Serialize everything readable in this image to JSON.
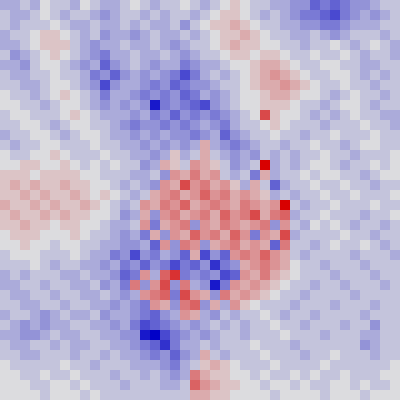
{
  "chart_data": {
    "type": "heatmap",
    "tick_labels": false,
    "zlim": [
      -9,
      9
    ],
    "cells": [
      [
        -2,
        -2,
        -1,
        -2,
        0,
        -1,
        -1,
        -2,
        0,
        -1,
        -2,
        -2,
        -1,
        0,
        -1,
        -2,
        -1,
        -1,
        0,
        -1,
        -2,
        -1,
        0,
        1,
        0,
        -1,
        -1,
        -2,
        -2,
        -3,
        -3,
        -5,
        -4,
        -5,
        -4,
        -3,
        -3,
        -2,
        -1,
        -1
      ],
      [
        -1,
        -2,
        -2,
        -1,
        0,
        -1,
        -2,
        -1,
        -1,
        -2,
        -3,
        -2,
        -1,
        -1,
        -2,
        -1,
        -2,
        -1,
        -1,
        -2,
        -1,
        0,
        1,
        1,
        0,
        -1,
        -2,
        -1,
        -2,
        -3,
        -4,
        -4,
        -5,
        -6,
        -4,
        -3,
        -2,
        -3,
        -2,
        -1
      ],
      [
        -1,
        -2,
        -1,
        -1,
        -1,
        0,
        -1,
        -2,
        -2,
        -1,
        -2,
        -2,
        -1,
        -2,
        -1,
        -2,
        -2,
        -1,
        -3,
        -1,
        0,
        1,
        1,
        2,
        1,
        0,
        -1,
        -1,
        -2,
        -2,
        -3,
        -3,
        -4,
        -4,
        -3,
        -2,
        -2,
        -2,
        -1,
        -1
      ],
      [
        -2,
        -1,
        -1,
        0,
        1,
        1,
        0,
        -1,
        -2,
        -1,
        -3,
        -2,
        -2,
        -3,
        -2,
        -1,
        -2,
        -2,
        -1,
        -2,
        -1,
        0,
        1,
        1,
        2,
        1,
        0,
        -1,
        -1,
        -2,
        -2,
        -1,
        -2,
        -3,
        -2,
        -1,
        -1,
        -1,
        -2,
        -1
      ],
      [
        -2,
        -2,
        -1,
        0,
        1,
        1,
        1,
        -1,
        -2,
        -3,
        -2,
        -2,
        -1,
        -2,
        -2,
        -1,
        -2,
        -3,
        -2,
        -1,
        -1,
        0,
        1,
        2,
        1,
        1,
        0,
        0,
        -1,
        -1,
        -2,
        -1,
        -1,
        0,
        -1,
        -2,
        -1,
        0,
        -1,
        -2
      ],
      [
        -1,
        -3,
        -2,
        -1,
        0,
        1,
        0,
        -1,
        -2,
        -3,
        -4,
        -2,
        -2,
        -1,
        -2,
        -2,
        -1,
        -2,
        -3,
        -2,
        -1,
        -1,
        0,
        1,
        1,
        0,
        1,
        1,
        0,
        -1,
        -1,
        0,
        -1,
        -1,
        0,
        -1,
        -2,
        -1,
        -1,
        -2
      ],
      [
        -2,
        -2,
        -3,
        -1,
        0,
        0,
        -1,
        -2,
        -3,
        -2,
        -5,
        -3,
        -2,
        -1,
        -2,
        -3,
        -2,
        -2,
        -4,
        -3,
        -2,
        -2,
        -1,
        0,
        0,
        1,
        2,
        2,
        1,
        0,
        -1,
        -1,
        0,
        0,
        -1,
        -1,
        -2,
        -2,
        -1,
        -1
      ],
      [
        -1,
        -2,
        -2,
        -1,
        -1,
        0,
        -1,
        -1,
        -2,
        -4,
        -3,
        -5,
        -3,
        -2,
        -3,
        -2,
        -3,
        -4,
        -6,
        -4,
        -2,
        -1,
        -2,
        -1,
        0,
        1,
        2,
        3,
        2,
        1,
        0,
        -1,
        -1,
        0,
        0,
        -1,
        -2,
        -1,
        -2,
        -1
      ],
      [
        -1,
        -1,
        -2,
        -2,
        -1,
        0,
        0,
        -1,
        -2,
        -3,
        -6,
        -3,
        -2,
        -2,
        -3,
        -4,
        -3,
        -5,
        -4,
        -3,
        -3,
        -2,
        -1,
        -1,
        0,
        1,
        2,
        2,
        3,
        2,
        1,
        0,
        -1,
        -1,
        0,
        -1,
        -1,
        -2,
        -1,
        -1
      ],
      [
        0,
        -1,
        -1,
        -2,
        -1,
        0,
        1,
        0,
        -1,
        -2,
        -4,
        -2,
        -2,
        -3,
        -4,
        -3,
        -4,
        -3,
        -5,
        -4,
        -2,
        -3,
        -2,
        -1,
        0,
        0,
        1,
        2,
        2,
        1,
        0,
        0,
        -1,
        -2,
        -1,
        0,
        -1,
        -1,
        -2,
        -1
      ],
      [
        0,
        0,
        -1,
        -1,
        -2,
        -1,
        0,
        0,
        -1,
        -2,
        -3,
        -2,
        -3,
        -2,
        -3,
        -8,
        -4,
        -3,
        -4,
        -5,
        -6,
        -3,
        -2,
        -1,
        0,
        0,
        1,
        1,
        1,
        0,
        -1,
        -1,
        -2,
        -1,
        0,
        0,
        -1,
        -2,
        -1,
        -1
      ],
      [
        -1,
        0,
        0,
        -1,
        -1,
        -1,
        0,
        1,
        0,
        -1,
        -2,
        -2,
        -2,
        -3,
        -2,
        -4,
        -3,
        -5,
        -3,
        -4,
        -3,
        -4,
        -3,
        -2,
        -1,
        0,
        6,
        1,
        0,
        0,
        -1,
        -2,
        -1,
        -2,
        -1,
        0,
        -1,
        -1,
        -2,
        -2
      ],
      [
        -1,
        -1,
        0,
        0,
        -1,
        -2,
        -1,
        0,
        0,
        -1,
        -1,
        -2,
        -3,
        -4,
        -3,
        -3,
        -4,
        -3,
        -4,
        -3,
        -2,
        -3,
        -4,
        -2,
        -1,
        -1,
        0,
        1,
        0,
        -1,
        -1,
        -1,
        -2,
        -1,
        -1,
        -1,
        0,
        -1,
        -1,
        -2
      ],
      [
        -2,
        -1,
        -1,
        0,
        0,
        -1,
        -2,
        -1,
        0,
        0,
        -1,
        -2,
        -2,
        -3,
        -2,
        -3,
        -2,
        -3,
        -3,
        -4,
        -3,
        -2,
        -5,
        -3,
        -2,
        -1,
        -1,
        0,
        -1,
        -1,
        -2,
        -1,
        -1,
        0,
        -1,
        -1,
        -1,
        0,
        -1,
        -1
      ],
      [
        -1,
        -2,
        -1,
        -1,
        0,
        0,
        -1,
        -1,
        -1,
        0,
        -1,
        -1,
        -2,
        -2,
        -3,
        -2,
        -3,
        -2,
        -3,
        -2,
        2,
        -2,
        -3,
        -4,
        -3,
        -2,
        -1,
        -1,
        -2,
        -1,
        -1,
        0,
        -1,
        -1,
        -2,
        -1,
        0,
        0,
        -1,
        -1
      ],
      [
        0,
        -1,
        -1,
        0,
        0,
        1,
        0,
        -1,
        -1,
        -1,
        0,
        -1,
        -1,
        -2,
        -2,
        -3,
        -2,
        1,
        -2,
        -1,
        2,
        -1,
        -2,
        -3,
        -2,
        -3,
        -1,
        -2,
        -1,
        -2,
        -1,
        -1,
        0,
        -1,
        -1,
        -2,
        -1,
        -1,
        -1,
        0
      ],
      [
        0,
        0,
        1,
        1,
        0,
        0,
        1,
        0,
        -1,
        0,
        -1,
        0,
        -1,
        -1,
        -3,
        -2,
        2,
        1,
        -1,
        3,
        2,
        1,
        -1,
        -3,
        -2,
        -1,
        9,
        -2,
        -1,
        -2,
        -1,
        0,
        0,
        -1,
        -2,
        -1,
        -1,
        0,
        -1,
        0
      ],
      [
        1,
        1,
        1,
        0,
        1,
        1,
        1,
        1,
        0,
        0,
        -1,
        -1,
        -1,
        -2,
        -2,
        -1,
        -3,
        3,
        2,
        4,
        2,
        3,
        -1,
        -2,
        -1,
        -4,
        2,
        -2,
        -1,
        -1,
        0,
        -1,
        0,
        0,
        -1,
        -1,
        -2,
        -1,
        0,
        0
      ],
      [
        1,
        2,
        1,
        2,
        1,
        1,
        2,
        1,
        1,
        0,
        0,
        -1,
        -2,
        -1,
        -2,
        -3,
        3,
        2,
        6,
        3,
        4,
        2,
        3,
        1,
        -2,
        2,
        -1,
        -5,
        -2,
        -1,
        -1,
        0,
        -1,
        -1,
        0,
        -1,
        -1,
        -2,
        -1,
        -1
      ],
      [
        1,
        1,
        2,
        1,
        2,
        1,
        1,
        2,
        1,
        0,
        1,
        0,
        -1,
        -2,
        -1,
        2,
        3,
        4,
        2,
        3,
        5,
        3,
        4,
        2,
        3,
        2,
        1,
        -2,
        -1,
        -2,
        -1,
        -1,
        0,
        -1,
        -1,
        0,
        -1,
        -1,
        -1,
        0
      ],
      [
        2,
        1,
        1,
        2,
        1,
        2,
        1,
        1,
        2,
        1,
        0,
        -1,
        -2,
        -1,
        3,
        2,
        4,
        3,
        5,
        2,
        3,
        4,
        3,
        2,
        4,
        3,
        2,
        3,
        9,
        -1,
        -2,
        -1,
        -1,
        0,
        -1,
        -1,
        -1,
        0,
        -1,
        -1
      ],
      [
        1,
        2,
        1,
        1,
        2,
        1,
        2,
        1,
        1,
        0,
        0,
        -1,
        -3,
        -2,
        2,
        -3,
        3,
        4,
        2,
        3,
        4,
        2,
        5,
        3,
        4,
        6,
        2,
        4,
        5,
        -2,
        -1,
        -1,
        0,
        -1,
        -1,
        -1,
        -2,
        -1,
        -1,
        0
      ],
      [
        1,
        1,
        2,
        1,
        1,
        0,
        1,
        1,
        0,
        0,
        -1,
        -2,
        -2,
        -1,
        3,
        -4,
        2,
        3,
        4,
        -3,
        3,
        2,
        4,
        3,
        2,
        3,
        4,
        -3,
        3,
        -1,
        -2,
        0,
        -1,
        0,
        -1,
        -2,
        -1,
        -1,
        -2,
        -1
      ],
      [
        0,
        1,
        1,
        1,
        0,
        0,
        0,
        1,
        0,
        -1,
        -1,
        -2,
        -3,
        -2,
        -4,
        2,
        -3,
        3,
        2,
        5,
        3,
        4,
        2,
        5,
        3,
        -4,
        3,
        2,
        6,
        -2,
        -1,
        -1,
        -1,
        -1,
        0,
        -1,
        -1,
        -2,
        -1,
        -1
      ],
      [
        0,
        0,
        1,
        0,
        0,
        -1,
        0,
        0,
        -1,
        -1,
        -2,
        -2,
        -3,
        -3,
        -2,
        -5,
        3,
        -3,
        4,
        3,
        -3,
        2,
        3,
        4,
        2,
        3,
        2,
        -5,
        4,
        -1,
        -1,
        -2,
        -1,
        0,
        -1,
        -1,
        0,
        -1,
        -2,
        -1
      ],
      [
        -1,
        0,
        0,
        0,
        -1,
        -1,
        -1,
        0,
        -1,
        -2,
        -2,
        -4,
        -3,
        -6,
        -3,
        -4,
        -2,
        -3,
        -5,
        2,
        -6,
        -3,
        -5,
        3,
        4,
        3,
        5,
        3,
        2,
        -1,
        -2,
        -1,
        -1,
        -1,
        -1,
        -2,
        -1,
        -1,
        -1,
        -2
      ],
      [
        -1,
        -1,
        -1,
        0,
        -1,
        -2,
        -1,
        -1,
        -2,
        -2,
        -3,
        -2,
        -4,
        -3,
        -5,
        -3,
        -4,
        -6,
        -4,
        -5,
        -3,
        -7,
        -4,
        -3,
        2,
        3,
        4,
        3,
        2,
        0,
        -1,
        -1,
        -2,
        -1,
        -1,
        -1,
        -2,
        -1,
        -1,
        -1
      ],
      [
        -2,
        -1,
        -2,
        -1,
        -1,
        -1,
        -2,
        -2,
        -1,
        -2,
        -2,
        -3,
        -5,
        -4,
        3,
        -2,
        5,
        7,
        -4,
        -3,
        -4,
        -3,
        -6,
        -5,
        3,
        2,
        4,
        2,
        1,
        0,
        -1,
        -1,
        -1,
        -2,
        -1,
        -1,
        -1,
        -2,
        -1,
        -1
      ],
      [
        -2,
        -2,
        -1,
        -1,
        -2,
        -1,
        -1,
        -2,
        -2,
        -1,
        -3,
        -2,
        -4,
        4,
        -3,
        3,
        6,
        -3,
        4,
        -2,
        -3,
        -8,
        -4,
        3,
        2,
        3,
        2,
        1,
        0,
        -1,
        -1,
        -2,
        -1,
        -1,
        -2,
        -1,
        -1,
        -1,
        -2,
        -1
      ],
      [
        -1,
        -2,
        -2,
        -1,
        -1,
        -2,
        -1,
        -1,
        -2,
        -2,
        -1,
        -2,
        -3,
        -2,
        3,
        4,
        5,
        -4,
        6,
        3,
        2,
        -3,
        4,
        2,
        3,
        2,
        1,
        0,
        -1,
        -1,
        -2,
        -1,
        -1,
        -1,
        -1,
        -2,
        -1,
        -1,
        -1,
        -1
      ],
      [
        -1,
        -1,
        -2,
        -2,
        -1,
        -1,
        -2,
        -1,
        -1,
        -2,
        -2,
        -3,
        -2,
        -3,
        -4,
        3,
        2,
        -3,
        4,
        5,
        -3,
        2,
        -2,
        3,
        1,
        0,
        -1,
        -1,
        -1,
        -2,
        -1,
        -1,
        -1,
        -2,
        -1,
        -1,
        -1,
        -2,
        -1,
        -1
      ],
      [
        -2,
        -1,
        -1,
        -2,
        -3,
        -2,
        -1,
        -2,
        -2,
        -1,
        -3,
        -2,
        -2,
        -3,
        -4,
        -5,
        -3,
        -2,
        3,
        2,
        -2,
        -3,
        -1,
        -2,
        -1,
        -1,
        0,
        -1,
        -2,
        -1,
        -1,
        -2,
        -1,
        -1,
        -1,
        -1,
        -2,
        -1,
        -1,
        -1
      ],
      [
        -1,
        -2,
        -3,
        -2,
        -3,
        -2,
        -2,
        -1,
        -1,
        -2,
        -2,
        -3,
        -2,
        -4,
        -6,
        -5,
        -4,
        -3,
        -2,
        -3,
        -2,
        -1,
        -2,
        -1,
        -2,
        -1,
        -1,
        0,
        -1,
        -1,
        -2,
        -1,
        -1,
        -1,
        -2,
        -1,
        -1,
        -3,
        -1,
        -1
      ],
      [
        -2,
        -2,
        -3,
        -3,
        -2,
        -1,
        -2,
        -2,
        -1,
        -1,
        -2,
        -2,
        -3,
        -3,
        -8,
        -9,
        -6,
        -4,
        -3,
        -2,
        -3,
        -2,
        -1,
        -1,
        -2,
        -1,
        -1,
        -1,
        0,
        -1,
        -1,
        -1,
        -2,
        -1,
        -1,
        -1,
        -2,
        -2,
        -1,
        -1
      ],
      [
        -1,
        -2,
        -2,
        -1,
        -1,
        -2,
        -1,
        -2,
        -2,
        -1,
        -1,
        -2,
        -2,
        -3,
        -4,
        -5,
        -7,
        -4,
        -2,
        -2,
        -1,
        -2,
        -1,
        -1,
        -1,
        0,
        -1,
        -1,
        -1,
        -2,
        -1,
        -1,
        -1,
        -1,
        -1,
        -1,
        -3,
        -2,
        -1,
        -1
      ],
      [
        -1,
        -1,
        -2,
        -2,
        -1,
        -1,
        -1,
        -2,
        -1,
        -1,
        -2,
        -1,
        -2,
        -2,
        -3,
        -4,
        -3,
        -5,
        -3,
        -2,
        2,
        -1,
        -2,
        -1,
        -1,
        -1,
        0,
        -1,
        -1,
        -1,
        -2,
        -1,
        -1,
        0,
        -1,
        -1,
        -1,
        -2,
        -1,
        -1
      ],
      [
        0,
        -1,
        -1,
        -1,
        -1,
        -1,
        0,
        -1,
        -1,
        -2,
        -1,
        -1,
        -1,
        -2,
        -2,
        -2,
        -3,
        -4,
        -2,
        -1,
        1,
        2,
        1,
        0,
        -1,
        -1,
        -1,
        0,
        -1,
        -1,
        -1,
        -1,
        0,
        -1,
        -1,
        -1,
        -1,
        -1,
        -1,
        0
      ],
      [
        0,
        0,
        -1,
        -1,
        0,
        -1,
        -1,
        0,
        -1,
        -1,
        -1,
        -2,
        -1,
        -1,
        -2,
        -1,
        -2,
        -3,
        -2,
        4,
        2,
        1,
        1,
        0,
        0,
        -1,
        0,
        -1,
        -1,
        0,
        -1,
        0,
        -1,
        -1,
        0,
        -1,
        -1,
        -1,
        0,
        0
      ],
      [
        0,
        0,
        0,
        -1,
        -1,
        0,
        0,
        -1,
        0,
        -1,
        -1,
        -1,
        -2,
        -1,
        -1,
        -1,
        -2,
        -2,
        -1,
        5,
        3,
        2,
        1,
        1,
        0,
        0,
        -1,
        0,
        0,
        -1,
        0,
        -1,
        -1,
        0,
        0,
        -1,
        0,
        -1,
        -1,
        0
      ],
      [
        0,
        0,
        0,
        0,
        -1,
        0,
        0,
        0,
        -1,
        0,
        -1,
        -1,
        -1,
        -1,
        -1,
        -1,
        -1,
        -1,
        -1,
        2,
        2,
        1,
        1,
        0,
        0,
        0,
        0,
        -1,
        0,
        0,
        0,
        0,
        -1,
        0,
        0,
        0,
        -1,
        0,
        0,
        0
      ]
    ]
  }
}
